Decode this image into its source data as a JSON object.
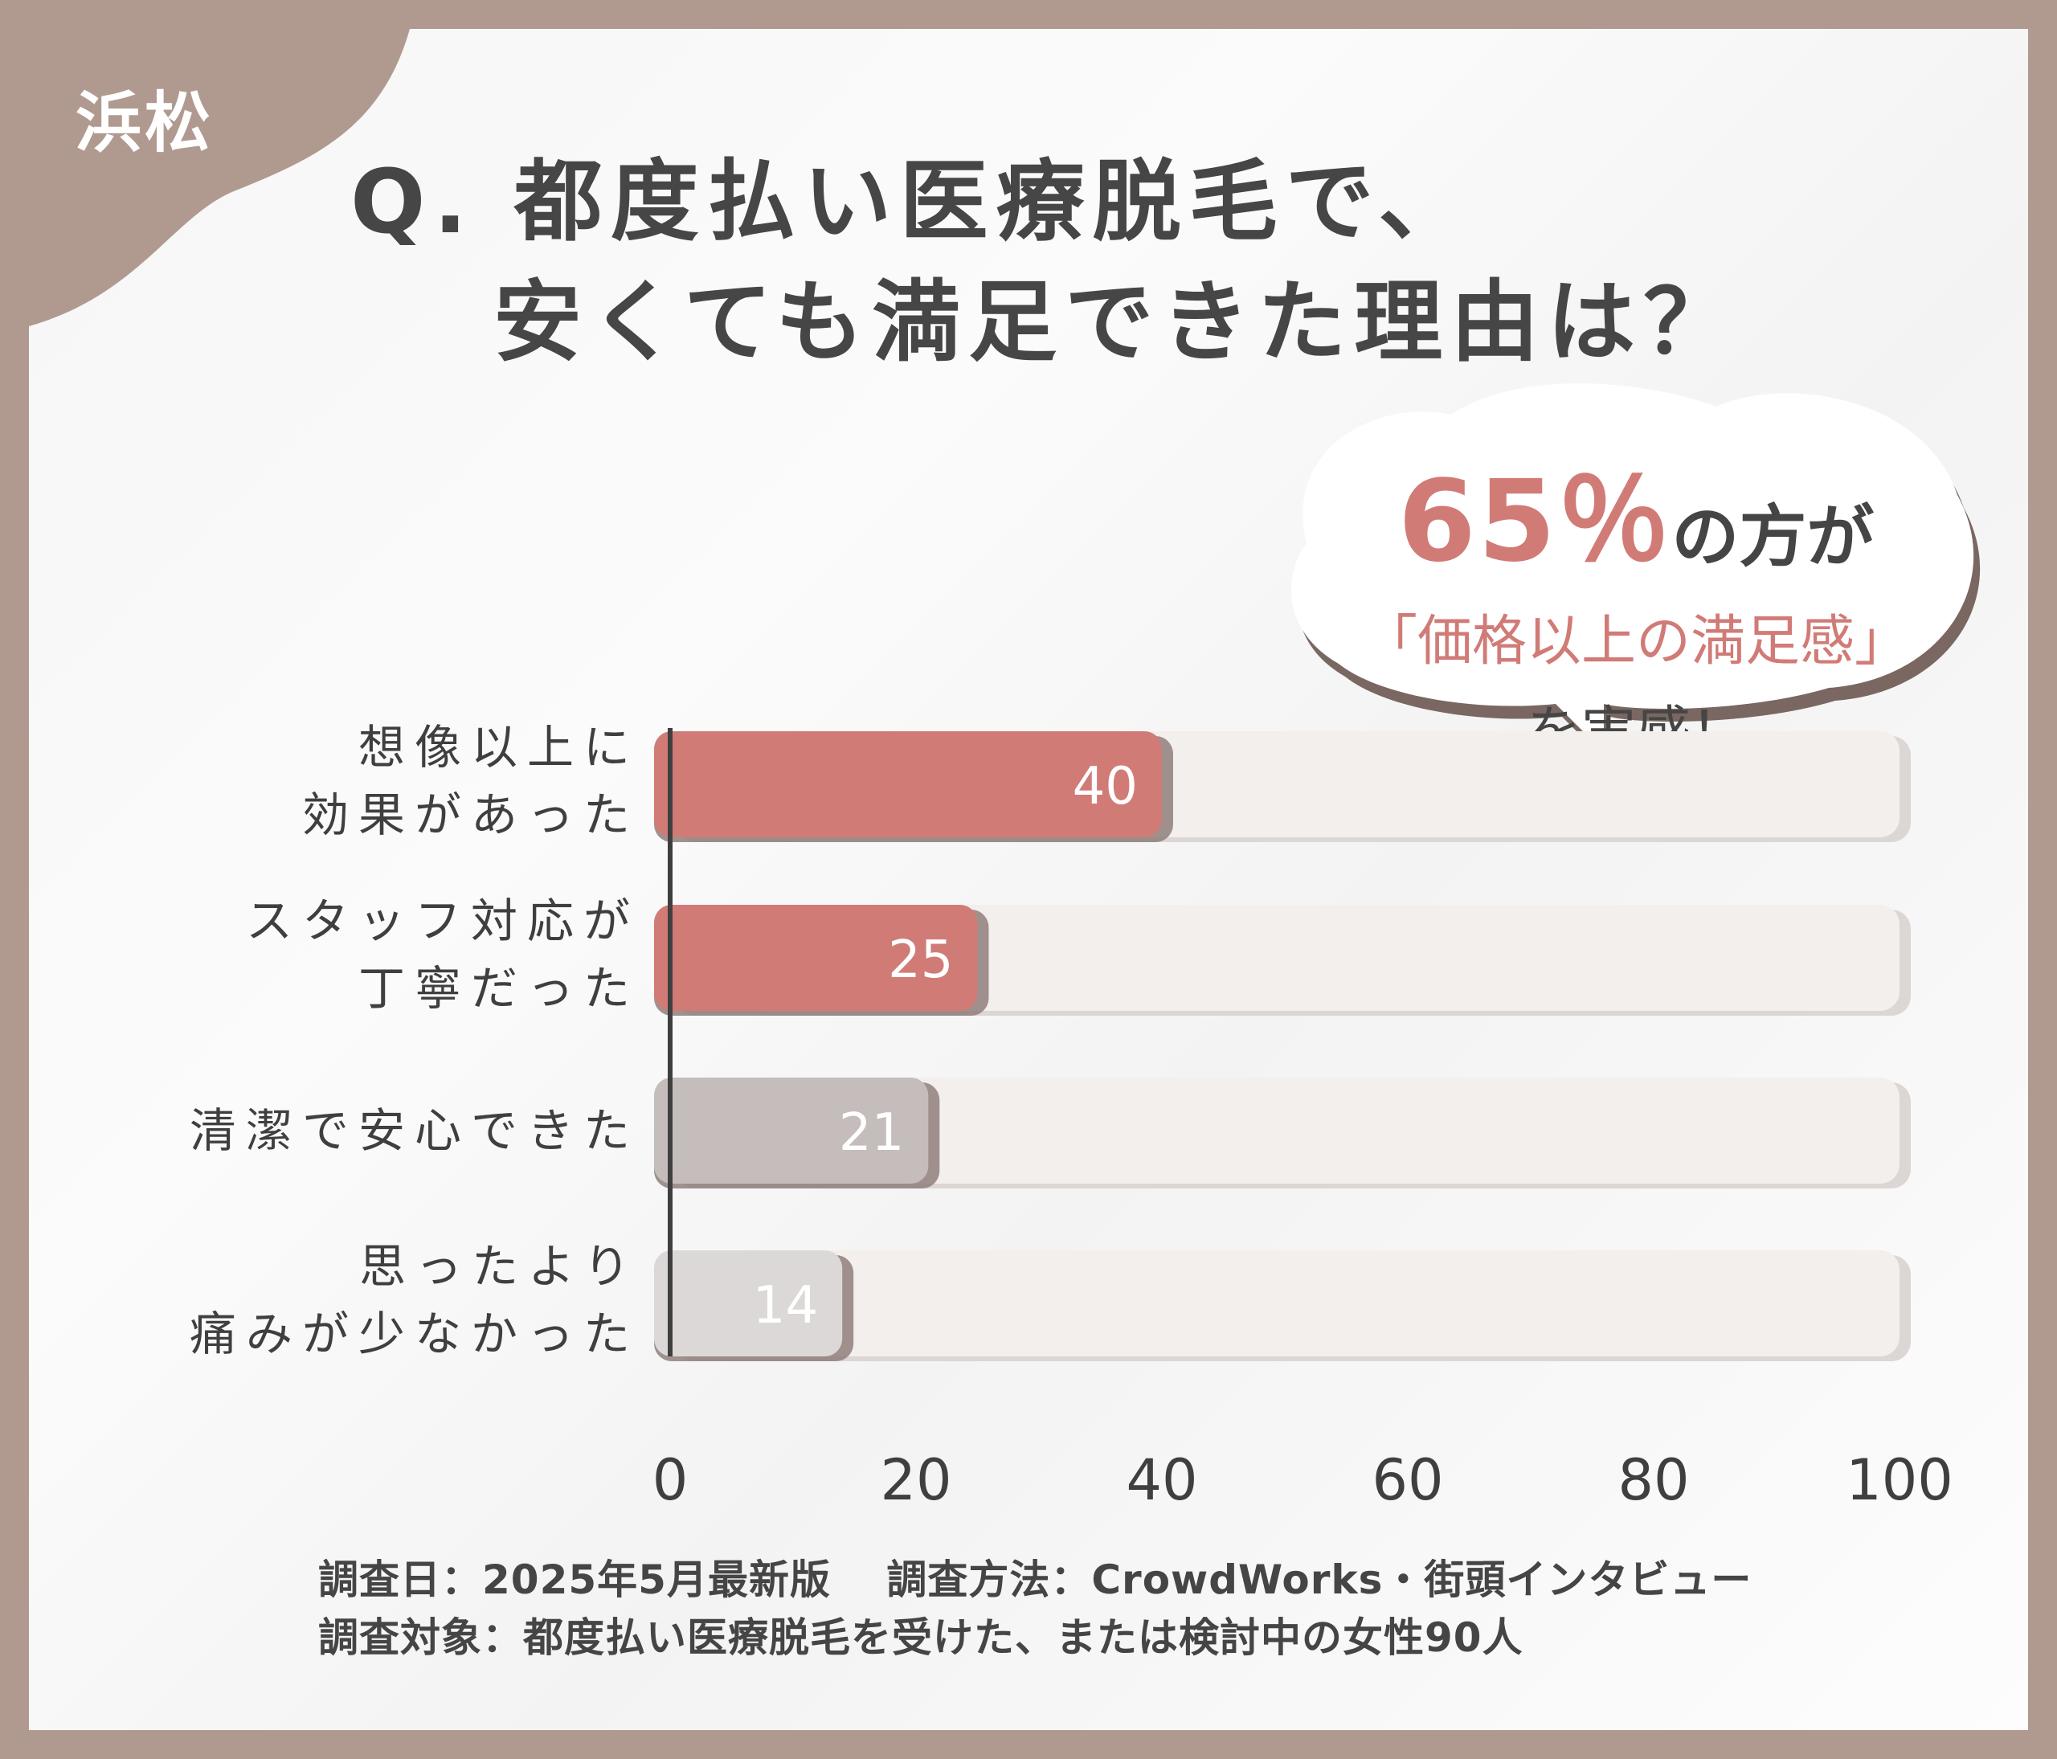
{
  "city_tag": "浜松",
  "title": {
    "line1": "Q. 都度払い医療脱毛で、",
    "line2": "安くても満足できた理由は？"
  },
  "callout": {
    "percent": "65％",
    "suffix": "の方が",
    "highlight": "「価格以上の満足感」",
    "ending": "を実感！"
  },
  "chart_data": {
    "type": "bar",
    "orientation": "horizontal",
    "categories": [
      [
        "想像以上に",
        "効果があった"
      ],
      [
        "スタッフ対応が",
        "丁寧だった"
      ],
      [
        "清潔で安心できた"
      ],
      [
        "思ったより",
        "痛みが少なかった"
      ]
    ],
    "values": [
      40,
      25,
      21,
      14
    ],
    "value_labels": [
      "40",
      "25",
      "21",
      "14"
    ],
    "bar_colors": [
      "#d17b77",
      "#d17b77",
      "#c5bdbb",
      "#dcd8d8"
    ],
    "xlim": [
      0,
      100
    ],
    "xticks": [
      0,
      20,
      40,
      60,
      80,
      100
    ],
    "xtick_labels": [
      "0",
      "20",
      "40",
      "60",
      "80",
      "100"
    ],
    "grid": false
  },
  "footnote": {
    "line1": "調査日：2025年5月最新版　 調査方法：CrowdWorks・街頭インタビュー",
    "line2": "調査対象：都度払い医療脱毛を受けた、または検討中の女性90人"
  }
}
